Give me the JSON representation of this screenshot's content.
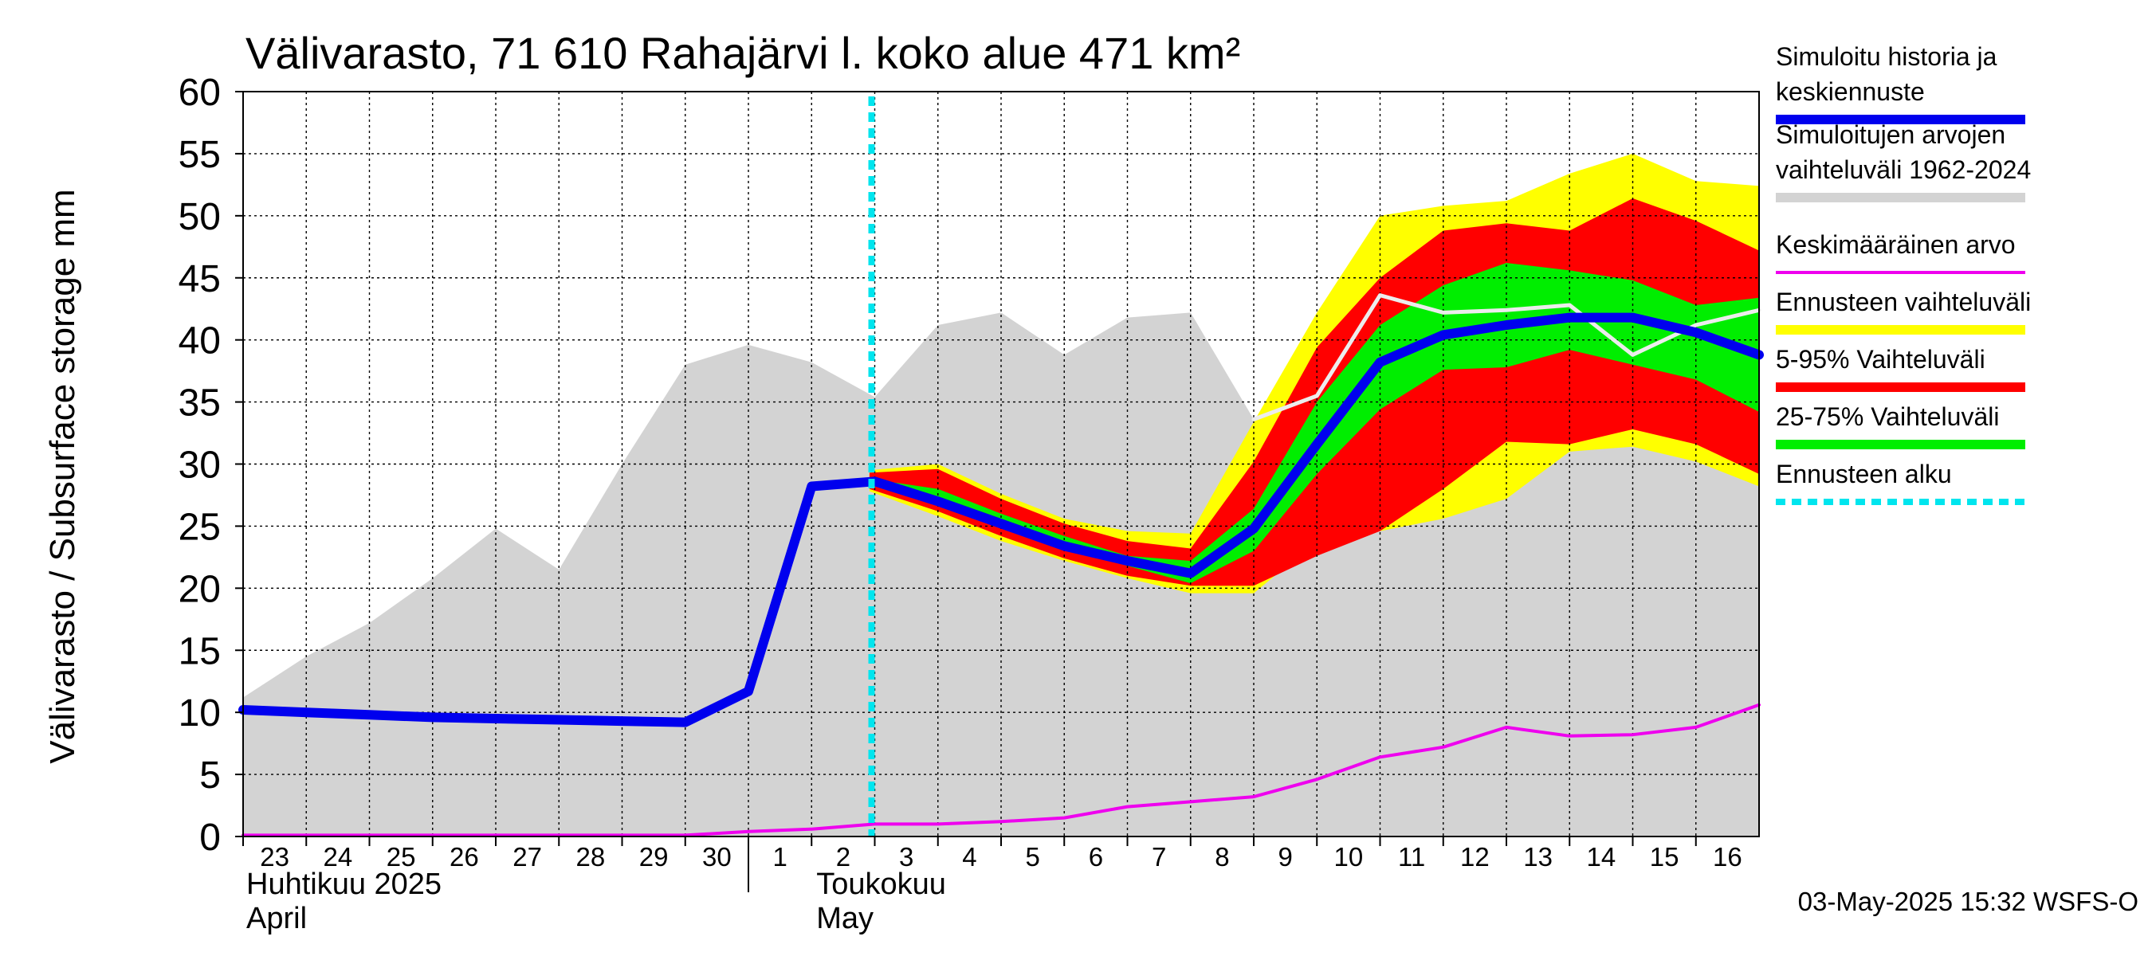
{
  "chart_data": {
    "type": "area",
    "title": "Välivarasto, 71 610 Rahajärvi l. koko alue 471 km²",
    "ylabel": "Välivarasto / Subsurface storage  mm",
    "ylim": [
      0,
      60
    ],
    "yticks": [
      0,
      5,
      10,
      15,
      20,
      25,
      30,
      35,
      40,
      45,
      50,
      55,
      60
    ],
    "grid": true,
    "x": [
      "2025-04-23",
      "2025-04-24",
      "2025-04-25",
      "2025-04-26",
      "2025-04-27",
      "2025-04-28",
      "2025-04-29",
      "2025-04-30",
      "2025-05-01",
      "2025-05-02",
      "2025-05-03",
      "2025-05-04",
      "2025-05-05",
      "2025-05-06",
      "2025-05-07",
      "2025-05-08",
      "2025-05-09",
      "2025-05-10",
      "2025-05-11",
      "2025-05-12",
      "2025-05-13",
      "2025-05-14",
      "2025-05-15",
      "2025-05-16",
      "2025-05-17"
    ],
    "xtick_labels": [
      "23",
      "24",
      "25",
      "26",
      "27",
      "28",
      "29",
      "30",
      "1",
      "2",
      "3",
      "4",
      "5",
      "6",
      "7",
      "8",
      "9",
      "10",
      "11",
      "12",
      "13",
      "14",
      "15",
      "16"
    ],
    "month_labels": [
      {
        "line1": "Huhtikuu  2025",
        "line2": "April"
      },
      {
        "line1": "Toukokuu",
        "line2": "May"
      }
    ],
    "forecast_start": "2025-05-03",
    "series": [
      {
        "name": "Simuloitujen arvojen vaihteluväli 1962-2024",
        "kind": "band",
        "color": "#d3d3d3",
        "x": [
          "2025-04-23",
          "2025-04-24",
          "2025-04-25",
          "2025-04-26",
          "2025-04-27",
          "2025-04-28",
          "2025-04-29",
          "2025-04-30",
          "2025-05-01",
          "2025-05-02",
          "2025-05-03",
          "2025-05-04",
          "2025-05-05",
          "2025-05-06",
          "2025-05-07",
          "2025-05-08",
          "2025-05-09",
          "2025-05-10",
          "2025-05-11",
          "2025-05-12",
          "2025-05-13",
          "2025-05-14",
          "2025-05-15",
          "2025-05-16",
          "2025-05-17"
        ],
        "upper": [
          11.2,
          14.5,
          17.2,
          20.8,
          24.8,
          21.5,
          30,
          38,
          39.6,
          38.2,
          35.4,
          41.2,
          42.2,
          38.8,
          41.8,
          42.2,
          33.6,
          35.5,
          43.6,
          42.2,
          42.4,
          42.8,
          38.8,
          41.2,
          42.4
        ],
        "lower": [
          0,
          0,
          0,
          0,
          0,
          0,
          0,
          0,
          0,
          0,
          0,
          0,
          0,
          0,
          0,
          0,
          0,
          0,
          0,
          0,
          0,
          0,
          0,
          0,
          0
        ]
      },
      {
        "name": "Ennusteen vaihteluväli",
        "kind": "band",
        "color": "#ffff00",
        "x": [
          "2025-05-02T22:00",
          "2025-05-04",
          "2025-05-05",
          "2025-05-06",
          "2025-05-07",
          "2025-05-08",
          "2025-05-09",
          "2025-05-10",
          "2025-05-11",
          "2025-05-12",
          "2025-05-13",
          "2025-05-14",
          "2025-05-15",
          "2025-05-16",
          "2025-05-17"
        ],
        "upper": [
          29.5,
          30,
          27.6,
          25.6,
          24.6,
          24.4,
          33.4,
          42.2,
          50,
          50.8,
          51.2,
          53.4,
          55,
          52.8,
          52.4
        ],
        "lower": [
          27.8,
          25.8,
          23.8,
          22.2,
          20.8,
          19.6,
          19.6,
          23.8,
          24.6,
          25.6,
          27.2,
          31,
          31.4,
          30.2,
          28.2
        ]
      },
      {
        "name": "5-95% Vaihteluväli",
        "kind": "band",
        "color": "#ff0000",
        "x": [
          "2025-05-02T22:00",
          "2025-05-04",
          "2025-05-05",
          "2025-05-06",
          "2025-05-07",
          "2025-05-08",
          "2025-05-09",
          "2025-05-10",
          "2025-05-11",
          "2025-05-12",
          "2025-05-13",
          "2025-05-14",
          "2025-05-15",
          "2025-05-16",
          "2025-05-17"
        ],
        "upper": [
          29.3,
          29.6,
          27.2,
          25.2,
          23.8,
          23.2,
          30.2,
          39.4,
          45,
          48.8,
          49.4,
          48.8,
          51.4,
          49.6,
          47.2
        ],
        "lower": [
          28,
          26.2,
          24.2,
          22.4,
          21,
          20.2,
          20.2,
          22.6,
          24.6,
          28,
          31.8,
          31.6,
          32.8,
          31.6,
          29.2
        ]
      },
      {
        "name": "25-75% Vaihteluväli",
        "kind": "band",
        "color": "#00ee00",
        "x": [
          "2025-05-02T22:00",
          "2025-05-04",
          "2025-05-05",
          "2025-05-06",
          "2025-05-07",
          "2025-05-08",
          "2025-05-09",
          "2025-05-10",
          "2025-05-11",
          "2025-05-12",
          "2025-05-13",
          "2025-05-14",
          "2025-05-15",
          "2025-05-16",
          "2025-05-17"
        ],
        "upper": [
          28.8,
          28,
          26,
          24.2,
          22.6,
          22.2,
          26.4,
          35,
          41.2,
          44.4,
          46.2,
          45.6,
          44.8,
          42.8,
          43.4
        ],
        "lower": [
          28.4,
          27,
          25,
          23.2,
          21.8,
          20.4,
          23,
          29.2,
          34.4,
          37.6,
          37.8,
          39.2,
          38,
          36.8,
          34.2
        ]
      },
      {
        "name": "Keskimääräinen arvo",
        "kind": "line",
        "color": "#ee00ee",
        "x": [
          "2025-04-23",
          "2025-04-24",
          "2025-04-25",
          "2025-04-26",
          "2025-04-27",
          "2025-04-28",
          "2025-04-29",
          "2025-04-30",
          "2025-05-01",
          "2025-05-02",
          "2025-05-03",
          "2025-05-04",
          "2025-05-05",
          "2025-05-06",
          "2025-05-07",
          "2025-05-08",
          "2025-05-09",
          "2025-05-10",
          "2025-05-11",
          "2025-05-12",
          "2025-05-13",
          "2025-05-14",
          "2025-05-15",
          "2025-05-16",
          "2025-05-17"
        ],
        "values": [
          0.1,
          0.1,
          0.1,
          0.1,
          0.1,
          0.1,
          0.1,
          0.1,
          0.4,
          0.6,
          1,
          1,
          1.2,
          1.5,
          2.4,
          2.8,
          3.2,
          4.6,
          6.4,
          7.2,
          8.8,
          8.1,
          8.2,
          8.8,
          10.6
        ]
      },
      {
        "name": "Simuloitujen arvojen mediaani",
        "kind": "line",
        "color": "#ececec",
        "x": [
          "2025-05-09",
          "2025-05-10",
          "2025-05-11",
          "2025-05-12",
          "2025-05-13",
          "2025-05-14",
          "2025-05-15",
          "2025-05-16",
          "2025-05-17"
        ],
        "values": [
          33.6,
          35.5,
          43.6,
          42.2,
          42.4,
          42.8,
          38.8,
          41.2,
          42.4
        ]
      },
      {
        "name": "Simuloitu historia ja keskiennuste",
        "kind": "line",
        "color": "#0000ee",
        "x": [
          "2025-04-23",
          "2025-04-24",
          "2025-04-25",
          "2025-04-26",
          "2025-04-27",
          "2025-04-28",
          "2025-04-29",
          "2025-04-30",
          "2025-05-01",
          "2025-05-02",
          "2025-05-03",
          "2025-05-04",
          "2025-05-05",
          "2025-05-06",
          "2025-05-07",
          "2025-05-08",
          "2025-05-09",
          "2025-05-10",
          "2025-05-11",
          "2025-05-12",
          "2025-05-13",
          "2025-05-14",
          "2025-05-15",
          "2025-05-16",
          "2025-05-17"
        ],
        "values": [
          10.2,
          10,
          9.8,
          9.6,
          9.5,
          9.4,
          9.3,
          9.2,
          11.7,
          28.2,
          28.6,
          27,
          25.2,
          23.4,
          22.2,
          21.2,
          24.8,
          31.6,
          38.2,
          40.4,
          41.2,
          41.8,
          41.8,
          40.6,
          38.8
        ]
      }
    ],
    "legend": {
      "placement": "right",
      "entries": [
        {
          "label": "Simuloitu historia ja keskiennuste",
          "color": "#0000ee",
          "style": "thick"
        },
        {
          "label": "Simuloitujen arvojen vaihteluväli 1962-2024",
          "color": "#d3d3d3",
          "style": "thick"
        },
        {
          "label": "Keskimääräinen arvo",
          "color": "#ee00ee",
          "style": "thin"
        },
        {
          "label": "Ennusteen vaihteluväli",
          "color": "#ffff00",
          "style": "thick"
        },
        {
          "label": "5-95% Vaihteluväli",
          "color": "#ff0000",
          "style": "thick"
        },
        {
          "label": "25-75% Vaihteluväli",
          "color": "#00ee00",
          "style": "thick"
        },
        {
          "label": "Ennusteen alku",
          "color": "#00e5ee",
          "style": "dashed"
        }
      ]
    },
    "footer": "03-May-2025 15:32 WSFS-O"
  }
}
